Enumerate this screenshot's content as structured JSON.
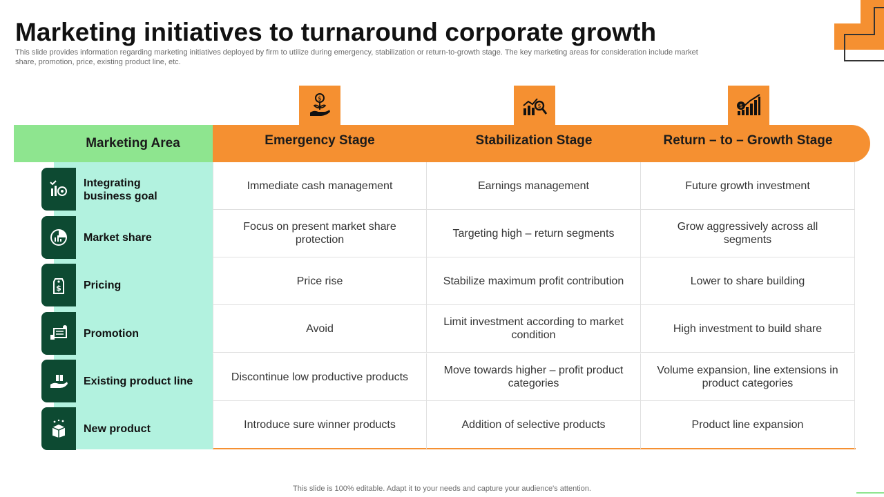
{
  "title": "Marketing initiatives to turnaround corporate growth",
  "subtitle": "This slide provides information regarding marketing initiatives deployed by firm to utilize during emergency, stabilization or return-to-growth stage. The key marketing areas for consideration include market share, promotion, price, existing product line, etc.",
  "header": {
    "area": "Marketing Area",
    "stages": [
      "Emergency Stage",
      "Stabilization Stage",
      "Return – to – Growth Stage"
    ],
    "stage_icons": [
      "money-plant-hand-icon",
      "chart-magnifier-icon",
      "growth-bars-icon"
    ]
  },
  "rows": [
    {
      "area": "Integrating business goal",
      "icon": "goal-chart-icon",
      "cells": [
        "Immediate cash management",
        "Earnings management",
        "Future growth investment"
      ]
    },
    {
      "area": "Market share",
      "icon": "market-share-icon",
      "cells": [
        "Focus on present market share protection",
        "Targeting high – return segments",
        "Grow aggressively across all segments"
      ]
    },
    {
      "area": "Pricing",
      "icon": "price-tag-icon",
      "cells": [
        "Price rise",
        "Stabilize maximum profit contribution",
        "Lower to share building"
      ]
    },
    {
      "area": "Promotion",
      "icon": "promotion-icon",
      "cells": [
        "Avoid",
        "Limit investment according to market condition",
        "High investment to build share"
      ]
    },
    {
      "area": "Existing product line",
      "icon": "product-hand-icon",
      "cells": [
        "Discontinue low productive products",
        "Move towards higher – profit product categories",
        "Volume expansion, line extensions in product categories"
      ]
    },
    {
      "area": "New product",
      "icon": "new-product-box-icon",
      "cells": [
        "Introduce sure winner products",
        "Addition of selective products",
        "Product line expansion"
      ]
    }
  ],
  "footer": "This slide is 100% editable. Adapt it to your needs and capture your audience's attention.",
  "colors": {
    "orange": "#f59031",
    "green_header": "#8ee58f",
    "mint": "#b2f2df",
    "dark_green": "#0d4a32"
  }
}
